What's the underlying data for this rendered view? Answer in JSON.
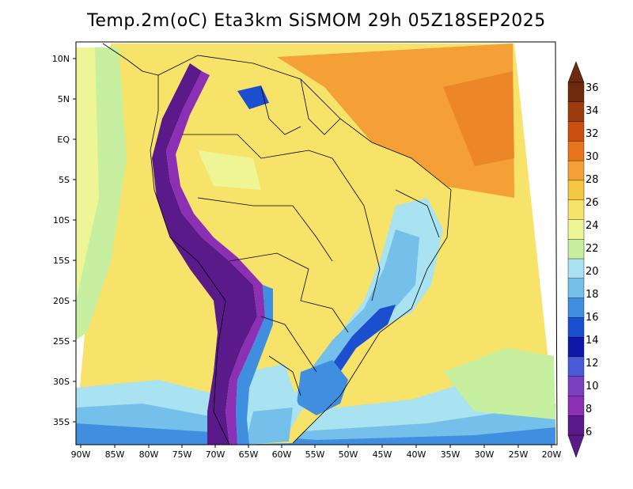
{
  "title": "Temp.2m(oC) Eta3km SiSMOM 29h 05Z18SEP2025",
  "lat_labels": [
    "10N",
    "5N",
    "EQ",
    "5S",
    "10S",
    "15S",
    "20S",
    "25S",
    "30S",
    "35S"
  ],
  "lon_labels": [
    "90W",
    "85W",
    "80W",
    "75W",
    "70W",
    "65W",
    "60W",
    "55W",
    "50W",
    "45W",
    "40W",
    "35W",
    "30W",
    "25W",
    "20W"
  ],
  "colorbar": {
    "labels": [
      "36",
      "34",
      "32",
      "30",
      "28",
      "26",
      "24",
      "22",
      "20",
      "18",
      "16",
      "14",
      "12",
      "10",
      "8",
      "6"
    ],
    "colors": [
      "#6e2a0c",
      "#9c3c0e",
      "#c9500f",
      "#e8741c",
      "#f5a037",
      "#f6c744",
      "#f8e36a",
      "#eef594",
      "#c6f0a0",
      "#a9e2f0",
      "#74c0ea",
      "#3f8ee0",
      "#1c4fd0",
      "#0e17a8",
      "#4a5ad8",
      "#7c3fc0",
      "#8b2fb4",
      "#5a1a8a"
    ]
  },
  "colors": {
    "ocean_warm": "#f5a037",
    "land_base": "#f8e36a",
    "andes": "#5a1a8a",
    "cool": "#74c0ea"
  }
}
